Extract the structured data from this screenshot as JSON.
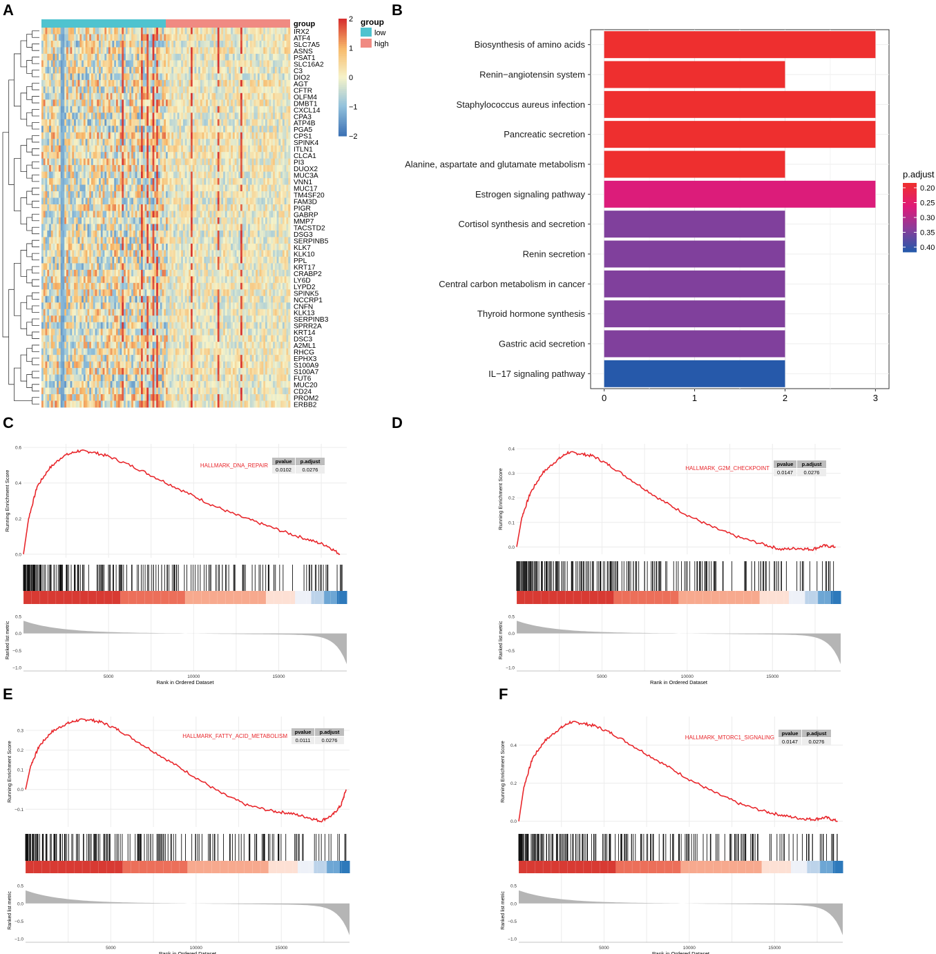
{
  "panels": [
    "A",
    "B",
    "C",
    "D",
    "E",
    "F"
  ],
  "chart_data": [
    {
      "id": "A",
      "type": "heatmap",
      "title": "",
      "annotation_title": "group",
      "groups": [
        {
          "name": "low",
          "color": "#4fc3cf"
        },
        {
          "name": "high",
          "color": "#f08a82"
        }
      ],
      "genes": [
        "IRX2",
        "ATF4",
        "SLC7A5",
        "ASNS",
        "PSAT1",
        "SLC16A2",
        "C3",
        "DIO2",
        "AGT",
        "CFTR",
        "OLFM4",
        "DMBT1",
        "CXCL14",
        "CPA3",
        "ATP4B",
        "PGA5",
        "CPS1",
        "SPINK4",
        "ITLN1",
        "CLCA1",
        "PI3",
        "DUOX2",
        "MUC3A",
        "VNN1",
        "MUC17",
        "TM4SF20",
        "FAM3D",
        "PIGR",
        "GABRP",
        "MMP7",
        "TACSTD2",
        "DSG3",
        "SERPINB5",
        "KLK7",
        "KLK10",
        "PPL",
        "KRT17",
        "CRABP2",
        "LY6D",
        "LYPD2",
        "SPINK5",
        "NCCRP1",
        "CNFN",
        "KLK13",
        "SERPINB3",
        "SPRR2A",
        "KRT14",
        "DSC3",
        "A2ML1",
        "RHCG",
        "EPHX3",
        "S100A9",
        "S100A7",
        "FUT6",
        "MUC20",
        "CD24",
        "PROM2",
        "ERBB2"
      ],
      "color_scale": {
        "values": [
          2,
          1,
          0,
          -1,
          -2
        ],
        "colors": [
          "#d7302f",
          "#f7b96a",
          "#f6f3c9",
          "#93c2dc",
          "#3e73b5"
        ]
      }
    },
    {
      "id": "B",
      "type": "bar",
      "orientation": "horizontal",
      "categories": [
        "Biosynthesis of amino acids",
        "Renin−angiotensin system",
        "Staphylococcus aureus infection",
        "Pancreatic secretion",
        "Alanine, aspartate and glutamate metabolism",
        "Estrogen signaling pathway",
        "Cortisol synthesis and secretion",
        "Renin secretion",
        "Central carbon metabolism in cancer",
        "Thyroid hormone synthesis",
        "Gastric acid secretion",
        "IL−17 signaling pathway"
      ],
      "values": [
        3,
        2,
        3,
        3,
        2,
        3,
        2,
        2,
        2,
        2,
        2,
        2
      ],
      "p_adjust": [
        0.2,
        0.2,
        0.2,
        0.2,
        0.2,
        0.27,
        0.34,
        0.34,
        0.34,
        0.34,
        0.34,
        0.4
      ],
      "xlim": [
        0,
        3.1
      ],
      "xticks": [
        0,
        1,
        2,
        3
      ],
      "legend_title": "p.adjust",
      "legend_ticks": [
        "0.20",
        "0.25",
        "0.30",
        "0.35",
        "0.40"
      ],
      "legend_range": [
        0.2,
        0.4
      ],
      "legend_colors": [
        "#ee2f2f",
        "#e01a78",
        "#8a3d9a",
        "#2659aa"
      ]
    },
    {
      "id": "C",
      "type": "line",
      "title": "HALLMARK_DNA_REPAIR",
      "table_headers": [
        "pvalue",
        "p.adjust"
      ],
      "table_values": [
        "0.0102",
        "0.0276"
      ],
      "ylabel": "Running Enrichment Score",
      "ylim": [
        -0.02,
        0.62
      ],
      "yticks": [
        "0.0",
        "0.2",
        "0.4",
        "0.6"
      ],
      "x": [
        0,
        300,
        800,
        1500,
        2300,
        3200,
        4000,
        5000,
        6500,
        8000,
        9500,
        11000,
        12500,
        14000,
        15500,
        16800,
        17800,
        18600
      ],
      "y": [
        0.0,
        0.2,
        0.38,
        0.48,
        0.55,
        0.58,
        0.575,
        0.55,
        0.49,
        0.42,
        0.35,
        0.28,
        0.22,
        0.17,
        0.12,
        0.08,
        0.05,
        0.0
      ],
      "metric_ylabel": "Ranked list metric",
      "metric_yticks": [
        "0.5",
        "0.0",
        "−0.5",
        "−1.0"
      ],
      "xlabel": "Rank in Ordered Dataset",
      "xticks": [
        "5000",
        "10000",
        "15000"
      ],
      "xmax": 19000
    },
    {
      "id": "D",
      "type": "line",
      "title": "HALLMARK_G2M_CHECKPOINT",
      "table_headers": [
        "pvalue",
        "p.adjust"
      ],
      "table_values": [
        "0.0147",
        "0.0276"
      ],
      "ylabel": "Running Enrichment Score",
      "ylim": [
        -0.03,
        0.42
      ],
      "yticks": [
        "0.0",
        "0.1",
        "0.2",
        "0.3",
        "0.4"
      ],
      "x": [
        0,
        300,
        800,
        1500,
        2300,
        3000,
        3700,
        4500,
        5500,
        7000,
        8500,
        10000,
        11500,
        13000,
        14500,
        15500,
        16500,
        17300,
        18000,
        18700
      ],
      "y": [
        0.0,
        0.12,
        0.22,
        0.3,
        0.35,
        0.385,
        0.38,
        0.37,
        0.33,
        0.26,
        0.19,
        0.13,
        0.08,
        0.04,
        0.01,
        -0.01,
        -0.005,
        -0.01,
        0.005,
        0.0
      ],
      "metric_ylabel": "Ranked list metric",
      "metric_yticks": [
        "0.5",
        "0.0",
        "−0.5",
        "−1.0"
      ],
      "xlabel": "Rank in Ordered Dataset",
      "xticks": [
        "5000",
        "10000",
        "15000"
      ],
      "xmax": 19000
    },
    {
      "id": "E",
      "type": "line",
      "title": "HALLMARK_FATTY_ACID_METABOLISM",
      "table_headers": [
        "pvalue",
        "p.adjust"
      ],
      "table_values": [
        "0.0111",
        "0.0276"
      ],
      "ylabel": "Running Enrichment Score",
      "ylim": [
        -0.19,
        0.37
      ],
      "yticks": [
        "−0.1",
        "0.0",
        "0.1",
        "0.2",
        "0.3"
      ],
      "x": [
        0,
        300,
        800,
        1500,
        2300,
        3000,
        3700,
        4500,
        5500,
        7000,
        8500,
        10000,
        11500,
        13000,
        14500,
        15500,
        16500,
        17300,
        18000,
        18500,
        18800
      ],
      "y": [
        0.0,
        0.12,
        0.22,
        0.29,
        0.33,
        0.35,
        0.355,
        0.34,
        0.3,
        0.22,
        0.14,
        0.06,
        -0.02,
        -0.08,
        -0.11,
        -0.12,
        -0.14,
        -0.16,
        -0.13,
        -0.08,
        0.0
      ],
      "metric_ylabel": "Ranked list metric",
      "metric_yticks": [
        "0.5",
        "0.0",
        "−0.5",
        "−1.0"
      ],
      "xlabel": "Rank in Ordered Dataset",
      "xticks": [
        "5000",
        "10000",
        "15000"
      ],
      "xmax": 19000
    },
    {
      "id": "F",
      "type": "line",
      "title": "HALLMARK_MTORC1_SIGNALING",
      "table_headers": [
        "pvalue",
        "p.adjust"
      ],
      "table_values": [
        "0.0147",
        "0.0276"
      ],
      "ylabel": "Running Enrichment Score",
      "ylim": [
        -0.03,
        0.55
      ],
      "yticks": [
        "0.0",
        "0.2",
        "0.4"
      ],
      "x": [
        0,
        300,
        800,
        1500,
        2300,
        3000,
        3700,
        4500,
        5500,
        7000,
        8500,
        10000,
        11500,
        13000,
        14500,
        15500,
        16500,
        17300,
        18000,
        18700
      ],
      "y": [
        0.0,
        0.18,
        0.33,
        0.42,
        0.48,
        0.52,
        0.515,
        0.5,
        0.46,
        0.38,
        0.3,
        0.22,
        0.15,
        0.09,
        0.05,
        0.03,
        0.015,
        0.01,
        0.02,
        0.0
      ],
      "metric_ylabel": "Ranked list metric",
      "metric_yticks": [
        "0.5",
        "0.0",
        "−0.5",
        "−1.0"
      ],
      "xlabel": "Rank in Ordered Dataset",
      "xticks": [
        "5000",
        "10000",
        "15000"
      ],
      "xmax": 19000
    }
  ]
}
